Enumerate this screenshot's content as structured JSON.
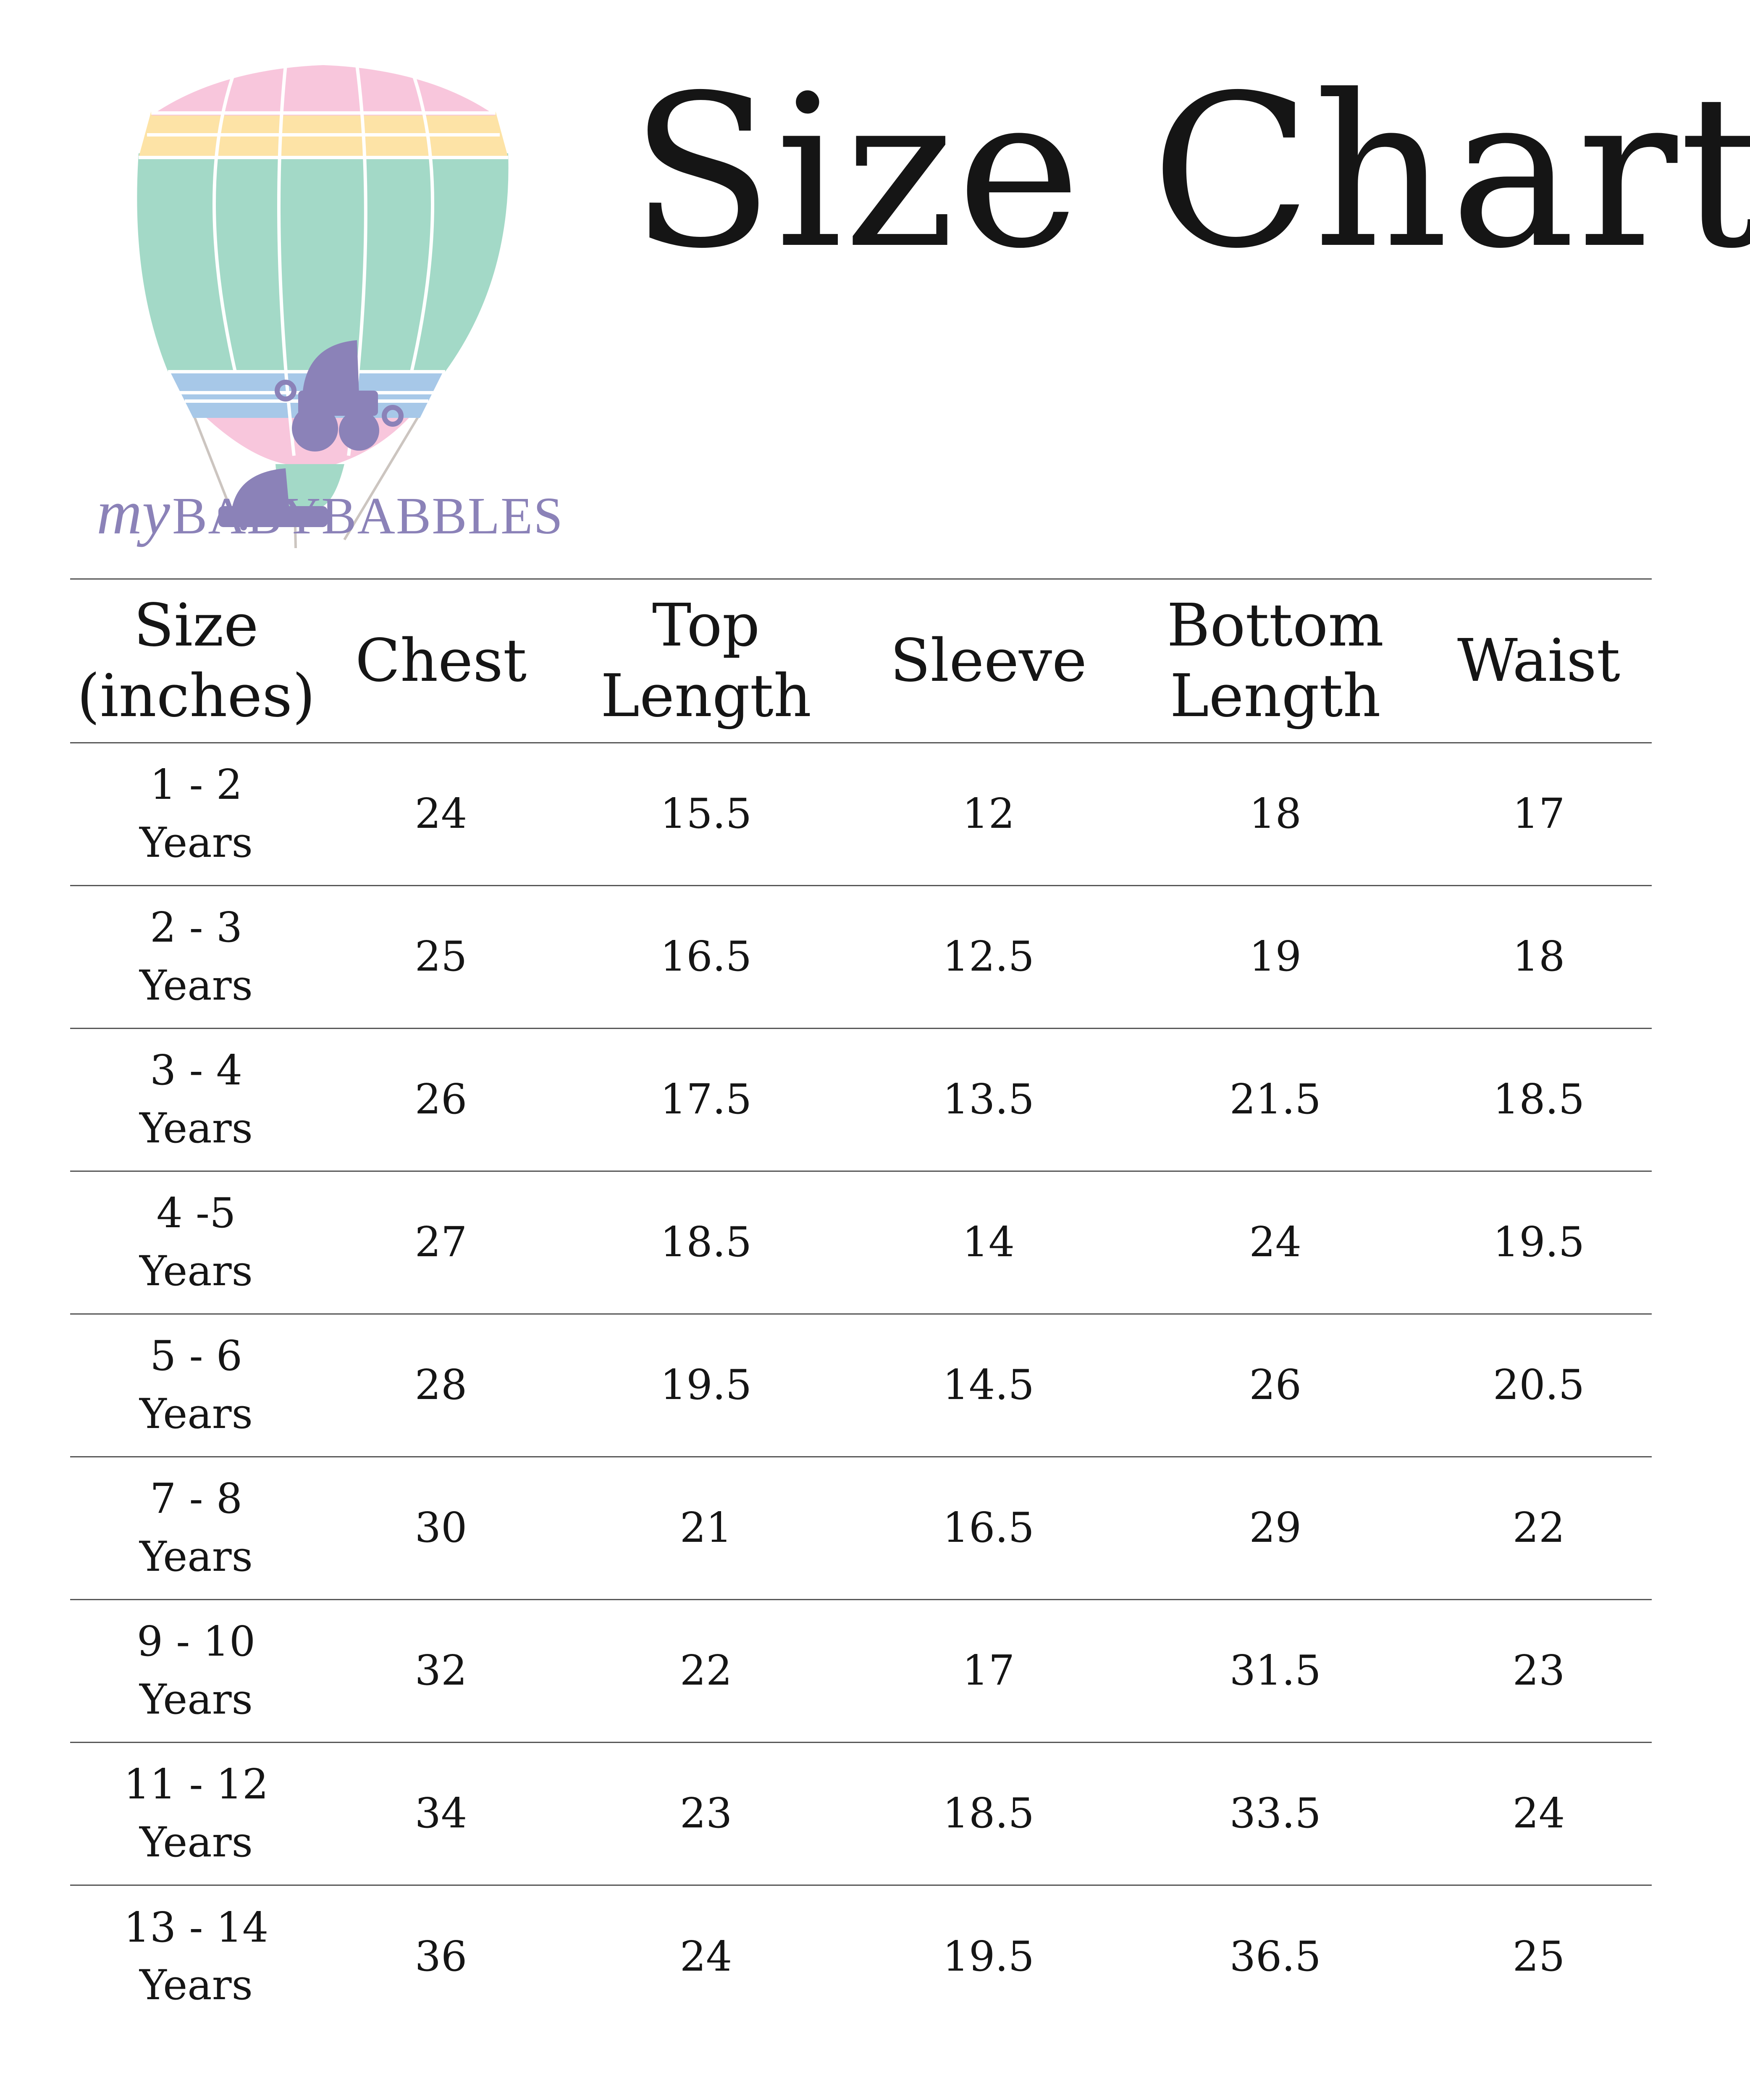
{
  "title": "Size Chart",
  "brand": {
    "script": "my",
    "name": "BABYBABBLES"
  },
  "colors": {
    "pink": "#f8c6dc",
    "yellow": "#fde3a6",
    "mint": "#a3d9c7",
    "blue": "#a7c8e8",
    "purple": "#8b82b8"
  },
  "headers": [
    [
      "Size",
      "(inches)"
    ],
    [
      "Chest"
    ],
    [
      "Top",
      "Length"
    ],
    [
      "Sleeve"
    ],
    [
      "Bottom",
      "Length"
    ],
    [
      "Waist"
    ]
  ],
  "rows": [
    {
      "size": [
        "1 - 2",
        "Years"
      ],
      "chest": "24",
      "top": "15.5",
      "sleeve": "12",
      "bottom": "18",
      "waist": "17"
    },
    {
      "size": [
        "2 - 3",
        "Years"
      ],
      "chest": "25",
      "top": "16.5",
      "sleeve": "12.5",
      "bottom": "19",
      "waist": "18"
    },
    {
      "size": [
        "3 - 4",
        "Years"
      ],
      "chest": "26",
      "top": "17.5",
      "sleeve": "13.5",
      "bottom": "21.5",
      "waist": "18.5"
    },
    {
      "size": [
        "4 -5",
        "Years"
      ],
      "chest": "27",
      "top": "18.5",
      "sleeve": "14",
      "bottom": "24",
      "waist": "19.5"
    },
    {
      "size": [
        "5 - 6",
        "Years"
      ],
      "chest": "28",
      "top": "19.5",
      "sleeve": "14.5",
      "bottom": "26",
      "waist": "20.5"
    },
    {
      "size": [
        "7 - 8",
        "Years"
      ],
      "chest": "30",
      "top": "21",
      "sleeve": "16.5",
      "bottom": "29",
      "waist": "22"
    },
    {
      "size": [
        "9 - 10",
        "Years"
      ],
      "chest": "32",
      "top": "22",
      "sleeve": "17",
      "bottom": "31.5",
      "waist": "23"
    },
    {
      "size": [
        "11 - 12",
        "Years"
      ],
      "chest": "34",
      "top": "23",
      "sleeve": "18.5",
      "bottom": "33.5",
      "waist": "24"
    },
    {
      "size": [
        "13 - 14",
        "Years"
      ],
      "chest": "36",
      "top": "24",
      "sleeve": "19.5",
      "bottom": "36.5",
      "waist": "25"
    }
  ]
}
